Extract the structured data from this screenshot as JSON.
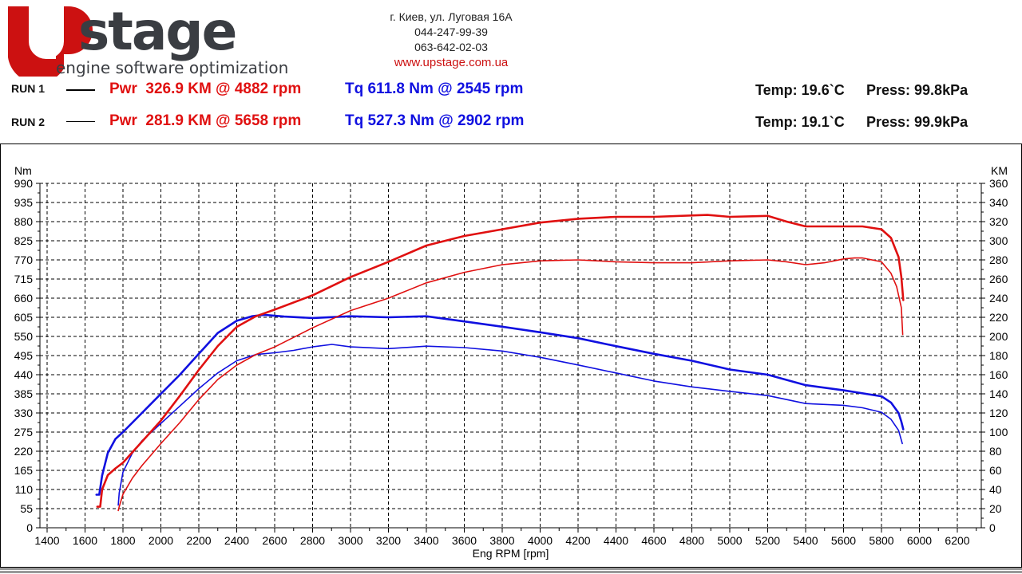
{
  "header": {
    "logo_text": "Upstage",
    "logo_tagline": "engine software optimization",
    "address": "г. Киев, ул. Луговая 16А",
    "phone1": "044-247-99-39",
    "phone2": "063-642-02-03",
    "website": "www.upstage.com.ua"
  },
  "runs": [
    {
      "label": "RUN 1",
      "pwr": "Pwr  326.9 KM @ 4882 rpm",
      "tq": "Tq 611.8 Nm @ 2545 rpm",
      "temp": "Temp: 19.6`C",
      "press": "Press: 99.8kPa"
    },
    {
      "label": "RUN 2",
      "pwr": "Pwr  281.9 KM @ 5658 rpm",
      "tq": "Tq 527.3 Nm @ 2902 rpm",
      "temp": "Temp: 19.1`C",
      "press": "Press: 99.9kPa"
    }
  ],
  "colors": {
    "power": "#e01010",
    "torque": "#1010e0",
    "brand_red": "#cc1111",
    "brand_gray": "#3a3d42"
  },
  "chart_data": {
    "type": "line",
    "xlabel": "Eng RPM [rpm]",
    "ylabel_left": "Nm",
    "ylabel_right": "KM",
    "xlim": [
      1400,
      6200
    ],
    "xticks": [
      1400,
      1600,
      1800,
      2000,
      2200,
      2400,
      2600,
      2800,
      3000,
      3200,
      3400,
      3600,
      3800,
      4000,
      4200,
      4400,
      4600,
      4800,
      5000,
      5200,
      5400,
      5600,
      5800,
      6000,
      6200
    ],
    "ylim_left": [
      0,
      990
    ],
    "yticks_left": [
      0,
      55,
      110,
      165,
      220,
      275,
      330,
      385,
      440,
      495,
      550,
      605,
      660,
      715,
      770,
      825,
      880,
      935,
      990
    ],
    "ylim_right": [
      0,
      360
    ],
    "yticks_right": [
      0,
      20,
      40,
      60,
      80,
      100,
      120,
      140,
      160,
      180,
      200,
      220,
      240,
      260,
      280,
      300,
      320,
      340,
      360
    ],
    "grid": true,
    "series": [
      {
        "name": "Run 1 Torque",
        "axis": "left",
        "unit": "Nm",
        "color": "#1010e0",
        "width": 2.6,
        "x": [
          1660,
          1675,
          1690,
          1720,
          1760,
          1800,
          1900,
          2000,
          2100,
          2200,
          2300,
          2400,
          2480,
          2545,
          2650,
          2800,
          3000,
          3200,
          3400,
          3600,
          3800,
          4000,
          4200,
          4400,
          4600,
          4800,
          5000,
          5200,
          5400,
          5600,
          5800,
          5850,
          5890,
          5905,
          5915
        ],
        "y": [
          95,
          95,
          150,
          215,
          255,
          275,
          330,
          385,
          440,
          500,
          560,
          595,
          608,
          612,
          607,
          603,
          608,
          605,
          608,
          593,
          578,
          562,
          545,
          522,
          500,
          480,
          455,
          440,
          410,
          395,
          378,
          360,
          330,
          305,
          283
        ]
      },
      {
        "name": "Run 2 Torque",
        "axis": "left",
        "unit": "Nm",
        "color": "#1010e0",
        "width": 1.6,
        "x": [
          1775,
          1780,
          1800,
          1850,
          1900,
          2000,
          2100,
          2200,
          2300,
          2400,
          2500,
          2600,
          2700,
          2800,
          2902,
          3000,
          3200,
          3400,
          3600,
          3800,
          4000,
          4200,
          4400,
          4600,
          4800,
          5000,
          5200,
          5400,
          5600,
          5700,
          5800,
          5850,
          5890,
          5910
        ],
        "y": [
          65,
          100,
          160,
          215,
          250,
          300,
          350,
          400,
          445,
          480,
          498,
          503,
          510,
          520,
          527,
          520,
          515,
          522,
          518,
          508,
          490,
          468,
          445,
          422,
          405,
          392,
          380,
          357,
          352,
          345,
          332,
          312,
          280,
          242
        ]
      },
      {
        "name": "Run 1 Power",
        "axis": "right",
        "unit": "KM",
        "color": "#e01010",
        "width": 2.6,
        "x": [
          1665,
          1680,
          1690,
          1720,
          1760,
          1800,
          1900,
          2000,
          2100,
          2200,
          2300,
          2400,
          2500,
          2600,
          2800,
          3000,
          3200,
          3400,
          3600,
          3800,
          4000,
          4200,
          4400,
          4600,
          4882,
          5000,
          5200,
          5300,
          5400,
          5600,
          5700,
          5800,
          5850,
          5890,
          5905,
          5915
        ],
        "y": [
          22,
          22,
          40,
          55,
          62,
          68,
          90,
          112,
          138,
          165,
          190,
          210,
          221,
          228,
          243,
          262,
          278,
          295,
          305,
          312,
          319,
          323,
          325,
          325,
          327,
          325,
          326,
          320,
          315,
          315,
          315,
          312,
          303,
          283,
          262,
          238
        ]
      },
      {
        "name": "Run 2 Power",
        "axis": "right",
        "unit": "KM",
        "color": "#e01010",
        "width": 1.6,
        "x": [
          1775,
          1780,
          1800,
          1850,
          1900,
          2000,
          2100,
          2200,
          2300,
          2400,
          2500,
          2600,
          2800,
          3000,
          3200,
          3400,
          3600,
          3800,
          4000,
          4200,
          4400,
          4600,
          4800,
          5000,
          5200,
          5300,
          5400,
          5500,
          5600,
          5658,
          5700,
          5800,
          5850,
          5880,
          5905,
          5912
        ],
        "y": [
          18,
          22,
          35,
          52,
          65,
          88,
          110,
          134,
          155,
          170,
          181,
          189,
          209,
          227,
          240,
          256,
          267,
          275,
          279,
          280,
          278,
          277,
          277,
          279,
          280,
          278,
          275,
          277,
          281,
          282,
          282,
          278,
          266,
          252,
          230,
          202
        ]
      }
    ]
  }
}
